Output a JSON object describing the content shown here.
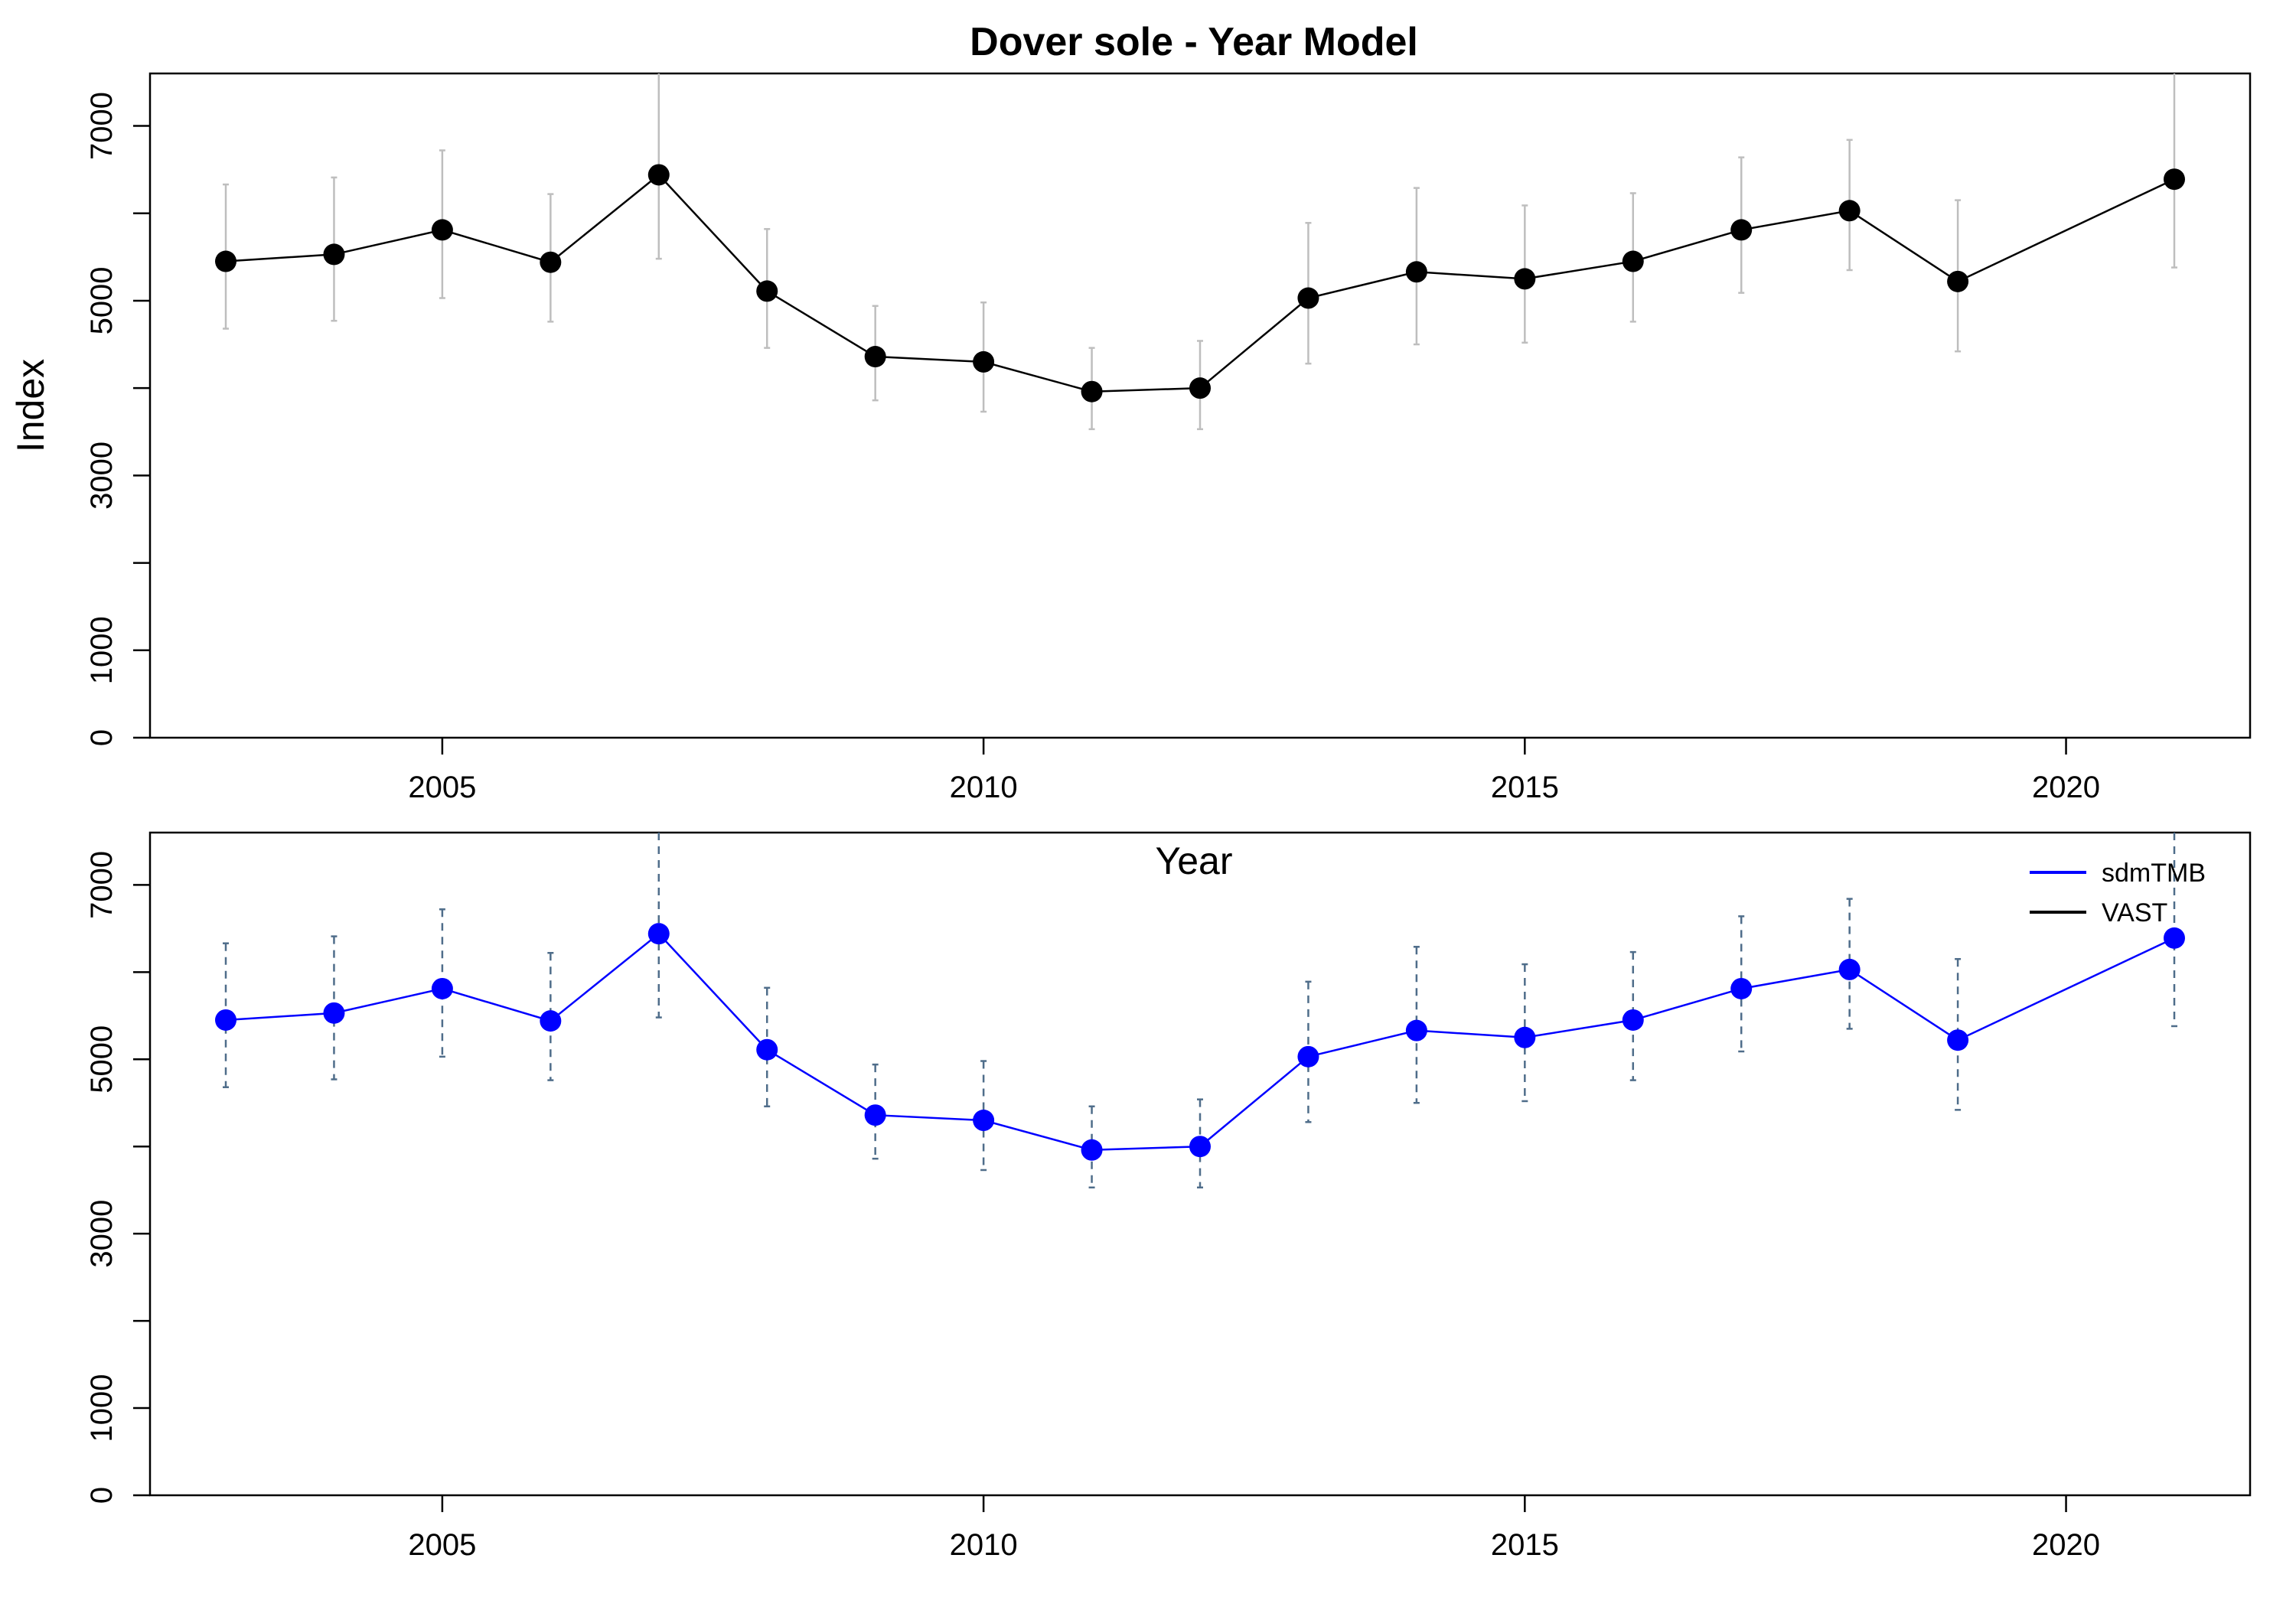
{
  "chart_data": [
    {
      "type": "line",
      "title": "Dover sole - Year Model",
      "xlabel": "Year",
      "ylabel": "Index",
      "xlim": [
        2002.3,
        2021.7
      ],
      "ylim": [
        0,
        7600
      ],
      "xticks": [
        2005,
        2010,
        2015,
        2020
      ],
      "yticks": [
        0,
        1000,
        2000,
        3000,
        4000,
        5000,
        6000,
        7000
      ],
      "ytick_labels": [
        "0",
        "1000",
        "",
        "3000",
        "",
        "5000",
        "",
        "7000"
      ],
      "series": [
        {
          "color": "#000000",
          "point_color": "#000000",
          "error_bar_color": "#bebebe",
          "error_bar_style": "solid",
          "x": [
            2003,
            2004,
            2005,
            2006,
            2007,
            2008,
            2009,
            2010,
            2011,
            2012,
            2013,
            2014,
            2015,
            2016,
            2017,
            2018,
            2019,
            2021
          ],
          "y": [
            5450,
            5530,
            5810,
            5440,
            6440,
            5110,
            4360,
            4300,
            3960,
            4000,
            5030,
            5330,
            5250,
            5450,
            5810,
            6030,
            5220,
            6390
          ],
          "lower": [
            4680,
            4770,
            5030,
            4760,
            5480,
            4460,
            3860,
            3730,
            3530,
            3530,
            4280,
            4500,
            4520,
            4760,
            5090,
            5350,
            4420,
            5380
          ],
          "upper": [
            6330,
            6410,
            6720,
            6220,
            7620,
            5820,
            4940,
            4980,
            4460,
            4540,
            5890,
            6290,
            6090,
            6230,
            6640,
            6840,
            6150,
            7620
          ]
        }
      ]
    },
    {
      "type": "line",
      "title": "",
      "xlabel": "",
      "ylabel": "",
      "xlim": [
        2002.3,
        2021.7
      ],
      "ylim": [
        0,
        7600
      ],
      "xticks": [
        2005,
        2010,
        2015,
        2020
      ],
      "yticks": [
        0,
        1000,
        2000,
        3000,
        4000,
        5000,
        6000,
        7000
      ],
      "ytick_labels": [
        "0",
        "1000",
        "",
        "3000",
        "",
        "5000",
        "",
        "7000"
      ],
      "legend": {
        "placement": "top-right",
        "entries": [
          {
            "label": "sdmTMB",
            "color": "#0000ff"
          },
          {
            "label": "VAST",
            "color": "#000000"
          }
        ]
      },
      "series": [
        {
          "name": "sdmTMB",
          "color": "#0000ff",
          "point_color": "#0000ff",
          "error_bar_color": "#4f6d8a",
          "error_bar_style": "dashed",
          "x": [
            2003,
            2004,
            2005,
            2006,
            2007,
            2008,
            2009,
            2010,
            2011,
            2012,
            2013,
            2014,
            2015,
            2016,
            2017,
            2018,
            2019,
            2021
          ],
          "y": [
            5450,
            5530,
            5810,
            5440,
            6440,
            5110,
            4360,
            4300,
            3960,
            4000,
            5030,
            5330,
            5250,
            5450,
            5810,
            6030,
            5220,
            6390
          ],
          "lower": [
            4680,
            4770,
            5030,
            4760,
            5480,
            4460,
            3860,
            3730,
            3530,
            3530,
            4280,
            4500,
            4520,
            4760,
            5090,
            5350,
            4420,
            5380
          ],
          "upper": [
            6330,
            6410,
            6720,
            6220,
            7620,
            5820,
            4940,
            4980,
            4460,
            4540,
            5890,
            6290,
            6090,
            6230,
            6640,
            6840,
            6150,
            7620
          ]
        }
      ]
    }
  ]
}
